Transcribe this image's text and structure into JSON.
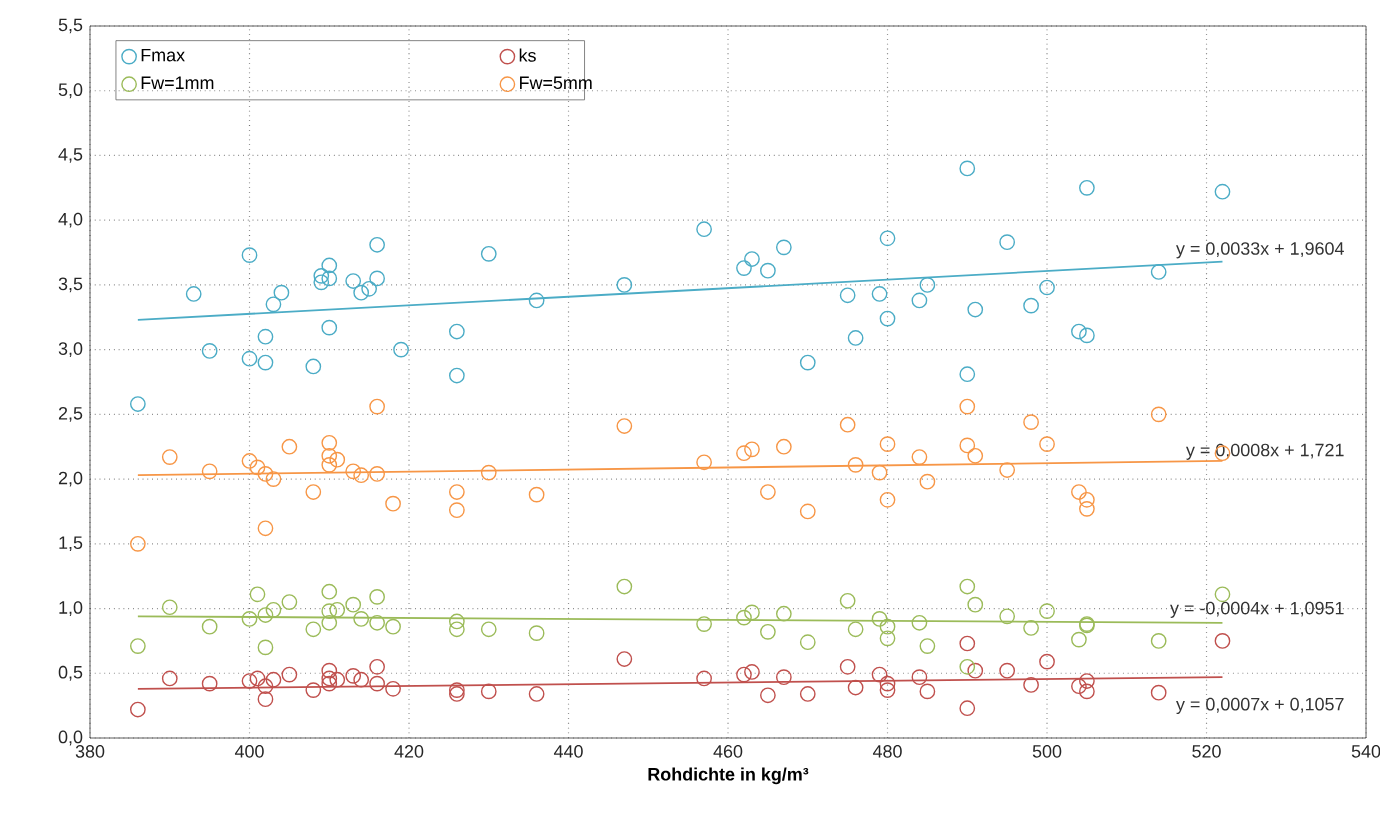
{
  "chart_data": {
    "type": "scatter",
    "xlabel": "Rohdichte in kg/m³",
    "xlim": [
      380,
      540
    ],
    "xticks": [
      380,
      400,
      420,
      440,
      460,
      480,
      500,
      520,
      540
    ],
    "ylim": [
      0,
      5.5
    ],
    "yticks": [
      {
        "value": 0,
        "label": "0,0"
      },
      {
        "value": 0.5,
        "label": "0,5"
      },
      {
        "value": 1,
        "label": "1,0"
      },
      {
        "value": 1.5,
        "label": "1,5"
      },
      {
        "value": 2,
        "label": "2,0"
      },
      {
        "value": 2.5,
        "label": "2,5"
      },
      {
        "value": 3,
        "label": "3,0"
      },
      {
        "value": 3.5,
        "label": "3,5"
      },
      {
        "value": 4,
        "label": "4,0"
      },
      {
        "value": 4.5,
        "label": "4,5"
      },
      {
        "value": 5,
        "label": "5,0"
      },
      {
        "value": 5.5,
        "label": "5,5"
      }
    ],
    "grid": true,
    "legend": "top left",
    "marker": "circle",
    "x": [
      386,
      390,
      395,
      400,
      401,
      402,
      402,
      403,
      405,
      408,
      410,
      410,
      410,
      411,
      413,
      414,
      416,
      416,
      418,
      426,
      426,
      430,
      436,
      447,
      457,
      462,
      463,
      465,
      467,
      470,
      475,
      476,
      479,
      480,
      480,
      484,
      485,
      490,
      490,
      491,
      495,
      498,
      500,
      504,
      505,
      505,
      514,
      522
    ],
    "series": [
      {
        "name": "Fmax",
        "color": "#4bacc6",
        "x": [
          386,
          393,
          395,
          400,
          400,
          402,
          402,
          403,
          404,
          408,
          409,
          409,
          410,
          410,
          410,
          413,
          414,
          415,
          416,
          416,
          419,
          426,
          426,
          430,
          436,
          447,
          457,
          462,
          463,
          465,
          467,
          470,
          475,
          476,
          479,
          480,
          480,
          484,
          485,
          490,
          490,
          491,
          495,
          498,
          500,
          505,
          504,
          505,
          514,
          522
        ],
        "values": [
          2.58,
          3.43,
          2.99,
          3.73,
          2.93,
          3.1,
          2.9,
          3.35,
          3.44,
          2.87,
          3.57,
          3.52,
          3.65,
          3.55,
          3.17,
          3.53,
          3.44,
          3.47,
          3.55,
          3.81,
          3.0,
          2.8,
          3.14,
          3.74,
          3.38,
          3.5,
          3.93,
          3.63,
          3.7,
          3.61,
          3.79,
          2.9,
          3.42,
          3.09,
          3.43,
          3.86,
          3.24,
          3.38,
          3.5,
          4.4,
          2.81,
          3.31,
          3.83,
          3.34,
          3.48,
          4.25,
          3.14,
          3.11,
          3.6,
          4.22
        ]
      },
      {
        "name": "ks",
        "color": "#c0504d",
        "values": [
          0.22,
          0.46,
          0.42,
          0.44,
          0.46,
          0.3,
          0.4,
          0.45,
          0.49,
          0.37,
          0.52,
          0.46,
          0.42,
          0.45,
          0.48,
          0.45,
          0.42,
          0.55,
          0.38,
          0.37,
          0.34,
          0.36,
          0.34,
          0.61,
          0.46,
          0.49,
          0.51,
          0.33,
          0.47,
          0.34,
          0.55,
          0.39,
          0.49,
          0.42,
          0.37,
          0.47,
          0.36,
          0.73,
          0.23,
          0.52,
          0.52,
          0.41,
          0.59,
          0.4,
          0.44,
          0.36,
          0.35,
          0.75
        ]
      },
      {
        "name": "Fw=1mm",
        "color": "#9bbb59",
        "values": [
          0.71,
          1.01,
          0.86,
          0.92,
          1.11,
          0.7,
          0.95,
          0.99,
          1.05,
          0.84,
          1.13,
          0.98,
          0.89,
          0.99,
          1.03,
          0.92,
          0.89,
          1.09,
          0.86,
          0.84,
          0.9,
          0.84,
          0.81,
          1.17,
          0.88,
          0.93,
          0.97,
          0.82,
          0.96,
          0.74,
          1.06,
          0.84,
          0.92,
          0.77,
          0.86,
          0.89,
          0.71,
          1.17,
          0.55,
          1.03,
          0.94,
          0.85,
          0.98,
          0.76,
          0.87,
          0.88,
          0.75,
          1.11
        ]
      },
      {
        "name": "Fw=5mm",
        "color": "#f79646",
        "values": [
          1.5,
          2.17,
          2.06,
          2.14,
          2.09,
          1.62,
          2.04,
          2.0,
          2.25,
          1.9,
          2.28,
          2.18,
          2.11,
          2.15,
          2.06,
          2.03,
          2.04,
          2.56,
          1.81,
          1.9,
          1.76,
          2.05,
          1.88,
          2.41,
          2.13,
          2.2,
          2.23,
          1.9,
          2.25,
          1.75,
          2.42,
          2.11,
          2.05,
          2.27,
          1.84,
          2.17,
          1.98,
          2.56,
          2.26,
          2.18,
          2.07,
          2.44,
          2.27,
          1.9,
          1.84,
          1.77,
          2.5,
          2.2
        ]
      },
      {
        "type": "line",
        "marker": "none",
        "color": "#4bacc6",
        "x": [
          386,
          522
        ],
        "values": [
          3.23,
          3.68
        ]
      },
      {
        "type": "line",
        "marker": "none",
        "color": "#c0504d",
        "x": [
          386,
          522
        ],
        "values": [
          0.38,
          0.47
        ]
      },
      {
        "type": "line",
        "marker": "none",
        "color": "#9bbb59",
        "x": [
          386,
          522
        ],
        "values": [
          0.94,
          0.89
        ]
      },
      {
        "type": "line",
        "marker": "none",
        "color": "#f79646",
        "x": [
          386,
          522
        ],
        "values": [
          2.03,
          2.14
        ]
      }
    ],
    "annotations": [
      "y = 0,0033x + 1,9604",
      "y = 0,0007x + 0,1057",
      "y = -0,0004x + 1,0951",
      "y = 0,0008x + 1,721"
    ]
  }
}
